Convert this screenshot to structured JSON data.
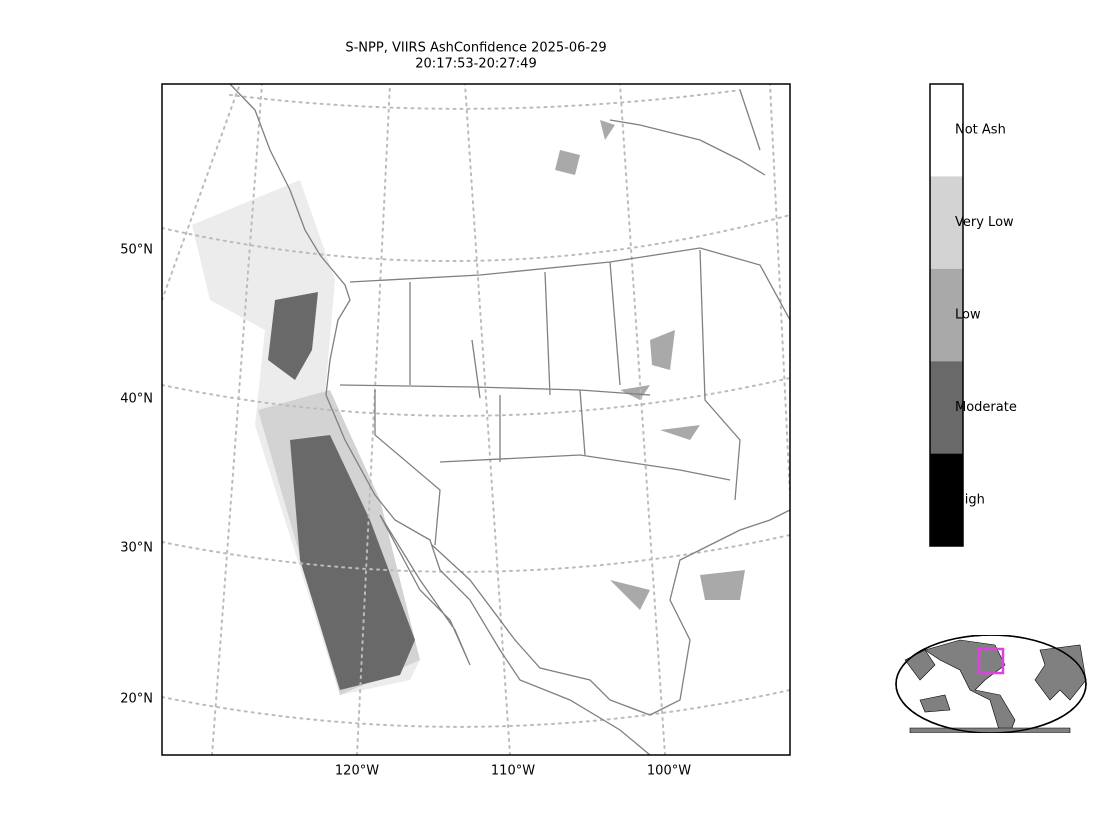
{
  "title": [
    "S-NPP, VIIRS AshConfidence 2025-06-29",
    "20:17:53-20:27:49"
  ],
  "lat_labels": [
    "50°N",
    "40°N",
    "30°N",
    "20°N"
  ],
  "lon_labels": [
    "120°W",
    "110°W",
    "100°W"
  ],
  "colorbar": [
    {
      "label": "Not Ash",
      "color": "#ffffff"
    },
    {
      "label": "Very Low",
      "color": "#d3d3d3"
    },
    {
      "label": "Low",
      "color": "#a9a9a9"
    },
    {
      "label": "Moderate",
      "color": "#696969"
    },
    {
      "label": "High",
      "color": "#000000"
    }
  ]
}
